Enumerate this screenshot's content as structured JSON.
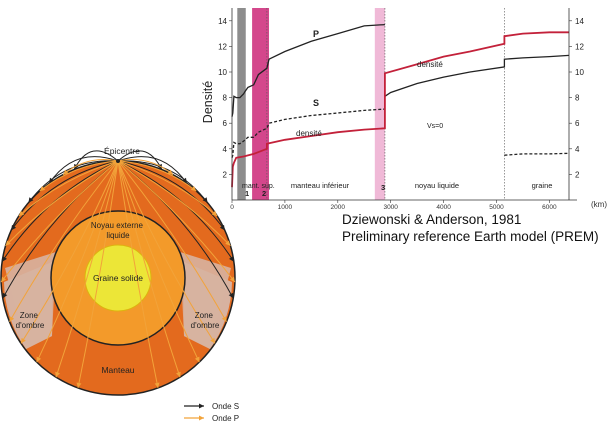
{
  "chart_data": [
    {
      "type": "line",
      "ylabel": "Densité",
      "xlabel_unit": "(km)",
      "x_ticks": [
        0,
        1000,
        2000,
        3000,
        4000,
        5000,
        6000
      ],
      "left_ticks": [
        2,
        4,
        6,
        8,
        10,
        12,
        14
      ],
      "right_ticks": [
        2,
        4,
        6,
        8,
        10,
        12,
        14
      ],
      "xlim": [
        0,
        6371
      ],
      "ylim": [
        0,
        15
      ],
      "grid": false,
      "series": [
        {
          "name": "P",
          "color": "#222222",
          "style": "solid",
          "x": [
            0,
            15,
            35,
            80,
            150,
            220,
            250,
            300,
            410,
            500,
            660,
            700,
            1000,
            1500,
            2000,
            2500,
            2891
          ],
          "y": [
            6.5,
            6.8,
            8.1,
            8.0,
            8.0,
            8.3,
            8.5,
            8.8,
            9.0,
            9.8,
            10.3,
            11.0,
            11.6,
            12.4,
            13.0,
            13.6,
            13.7
          ]
        },
        {
          "name": "P-core",
          "color": "#222222",
          "style": "solid",
          "x": [
            2891,
            3000,
            3500,
            4000,
            4500,
            5150,
            5150,
            5500,
            6000,
            6371
          ],
          "y": [
            8.1,
            8.4,
            9.1,
            9.6,
            10.0,
            10.4,
            11.0,
            11.1,
            11.2,
            11.3
          ]
        },
        {
          "name": "S",
          "color": "#222222",
          "style": "dashed",
          "x": [
            0,
            15,
            35,
            80,
            150,
            220,
            300,
            410,
            500,
            660,
            700,
            1000,
            1500,
            2000,
            2500,
            2891
          ],
          "y": [
            3.3,
            3.5,
            4.5,
            4.4,
            4.4,
            4.6,
            4.9,
            4.9,
            5.3,
            5.6,
            6.0,
            6.3,
            6.6,
            6.8,
            7.0,
            7.1
          ]
        },
        {
          "name": "S-inner-core",
          "color": "#222222",
          "style": "dashed",
          "x": [
            5150,
            5500,
            6000,
            6371
          ],
          "y": [
            3.5,
            3.6,
            3.6,
            3.65
          ]
        },
        {
          "name": "densité",
          "color": "#c3213a",
          "style": "solid",
          "x": [
            0,
            15,
            35,
            80,
            220,
            410,
            660,
            660,
            1000,
            1500,
            2000,
            2500,
            2891,
            2891,
            3500,
            4000,
            4500,
            5150,
            5150,
            5500,
            6000,
            6371
          ],
          "y": [
            1.0,
            2.6,
            2.9,
            3.3,
            3.4,
            3.6,
            4.0,
            4.4,
            4.7,
            5.0,
            5.3,
            5.5,
            5.6,
            9.9,
            10.6,
            11.2,
            11.6,
            12.2,
            12.8,
            13.0,
            13.1,
            13.1
          ]
        }
      ],
      "zones": [
        {
          "label": "mant. sup.",
          "x0": 0,
          "x1": 660
        },
        {
          "label": "manteau inférieur",
          "x0": 660,
          "x1": 2891
        },
        {
          "label": "noyau liquide",
          "x0": 2891,
          "x1": 5150
        },
        {
          "label": "graine",
          "x0": 5150,
          "x1": 6371
        }
      ],
      "marker_numbers": [
        "1",
        "2",
        "3"
      ],
      "annotations": [
        "P",
        "S",
        "densité",
        "densité",
        "Vs=0"
      ],
      "bands": [
        {
          "x0": 100,
          "x1": 260,
          "color": "#8d8d8d"
        },
        {
          "x0": 380,
          "x1": 700,
          "color": "#d4478c"
        },
        {
          "x0": 2700,
          "x1": 2891,
          "color": "#f0b9d7"
        }
      ]
    },
    {
      "type": "diagram",
      "labels": {
        "epicenter": "Épicentre",
        "outer_core": "Noyau externe liquide",
        "inner_core": "Graine solide",
        "shadow_left": "Zone d'ombre",
        "shadow_right": "Zone d'ombre",
        "mantle": "Manteau"
      },
      "legend": [
        {
          "label": "Onde S",
          "color": "#222222"
        },
        {
          "label": "Onde P",
          "color": "#f2a33a"
        }
      ],
      "colors": {
        "mantle": "#e36a1e",
        "outer_core": "#f39a2a",
        "inner_core": "#ece637",
        "shadow": "#d7b2a0"
      }
    }
  ],
  "citation": {
    "line1": "Dziewonski & Anderson, 1981",
    "line2": "Preliminary reference Earth model (PREM)"
  }
}
